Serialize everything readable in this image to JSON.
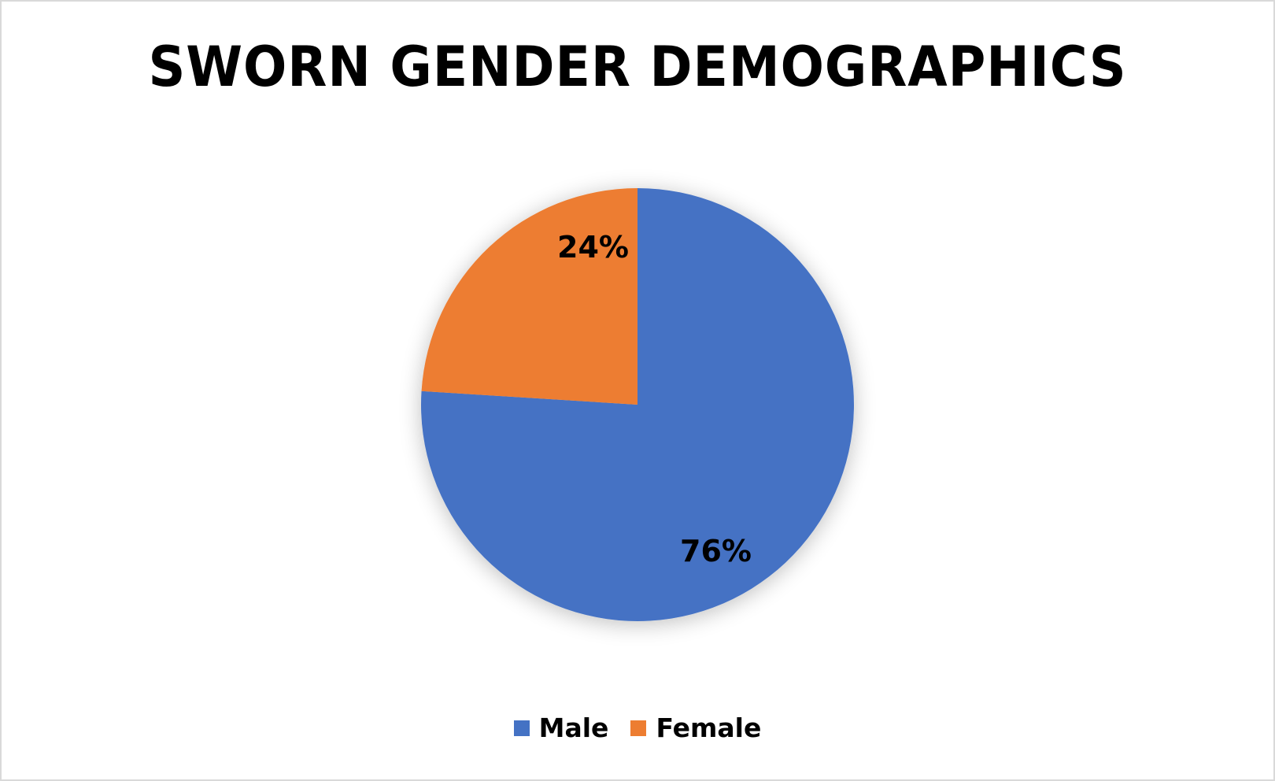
{
  "chart_data": {
    "type": "pie",
    "title": "SWORN GENDER DEMOGRAPHICS",
    "categories": [
      "Male",
      "Female"
    ],
    "values": [
      76,
      24
    ],
    "labels": [
      "76%",
      "24%"
    ],
    "colors": [
      "#4472C4",
      "#ED7D31"
    ],
    "legend_position": "bottom"
  },
  "legend": {
    "items": [
      {
        "label": "Male",
        "color": "#4472C4"
      },
      {
        "label": "Female",
        "color": "#ED7D31"
      }
    ]
  }
}
